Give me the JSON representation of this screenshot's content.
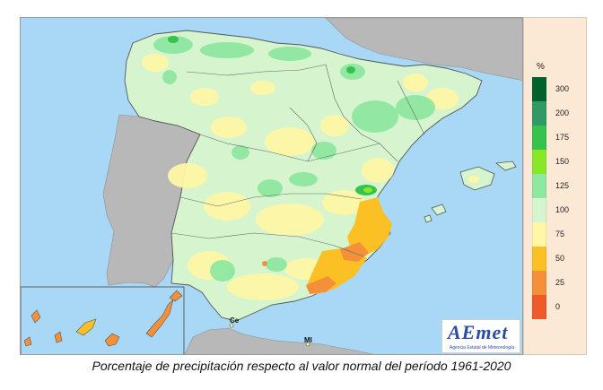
{
  "caption": "Porcentaje de precipitación respecto al valor normal del período 1961-2020",
  "legend": {
    "unit": "%",
    "classes": [
      {
        "label": "300",
        "color": "#00632e"
      },
      {
        "label": "200",
        "color": "#2f9a63"
      },
      {
        "label": "175",
        "color": "#35c24f"
      },
      {
        "label": "150",
        "color": "#88e828"
      },
      {
        "label": "125",
        "color": "#8fe8a0"
      },
      {
        "label": "100",
        "color": "#d6f5cf"
      },
      {
        "label": "75",
        "color": "#fff7a6"
      },
      {
        "label": "50",
        "color": "#fbc124"
      },
      {
        "label": "25",
        "color": "#f4903a"
      },
      {
        "label": "0",
        "color": "#f05a2a"
      }
    ]
  },
  "map": {
    "sea_color": "#a9d8f6",
    "foreign_land_color": "#b8b8b8",
    "city_labels": {
      "ceuta": "Ce",
      "melilla": "Ml"
    }
  },
  "logo": {
    "name": "AEmet",
    "subtitle": "Agencia Estatal de Meteorología"
  }
}
